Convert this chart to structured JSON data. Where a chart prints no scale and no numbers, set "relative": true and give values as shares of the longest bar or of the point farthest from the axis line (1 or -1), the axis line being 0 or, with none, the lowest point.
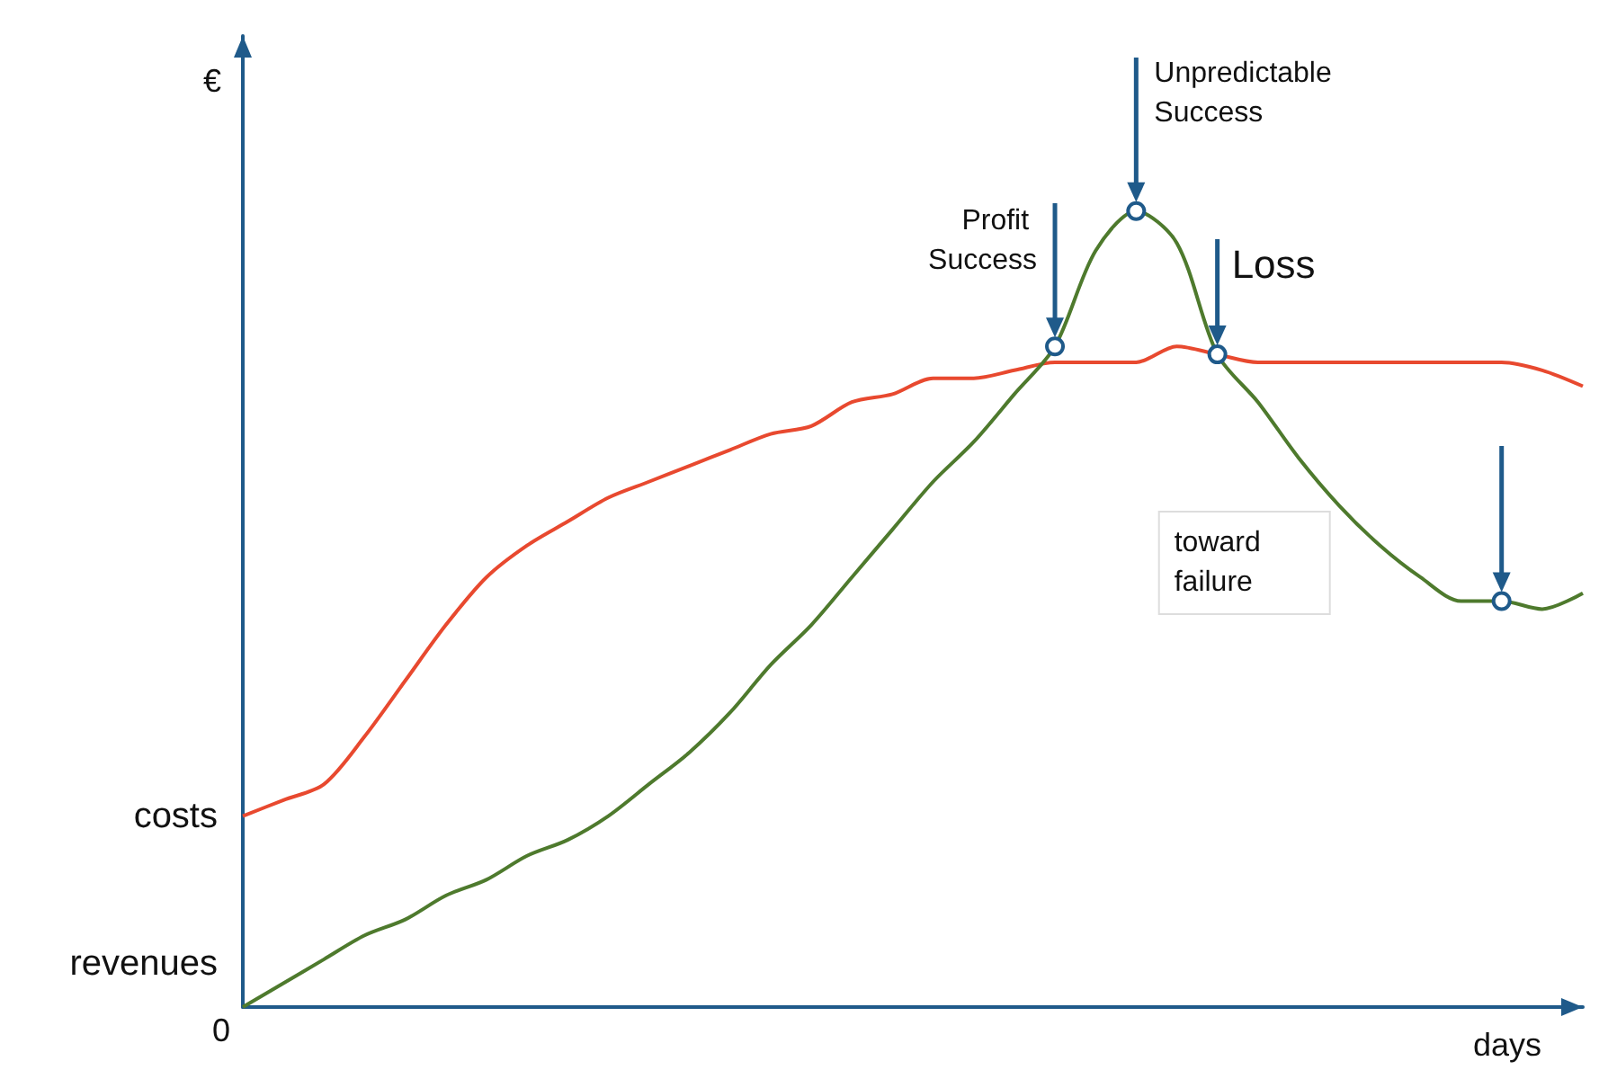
{
  "chart_data": {
    "type": "line",
    "relative": true,
    "xlabel": "days",
    "ylabel": "€",
    "legend": false,
    "grid": false,
    "marker": "none",
    "categories": [
      null,
      null,
      null,
      null,
      null,
      null,
      null,
      null,
      null,
      null,
      null,
      null,
      null,
      null,
      null,
      null,
      null,
      null,
      null,
      null,
      null,
      null,
      null,
      null,
      null,
      null,
      null,
      null,
      null,
      null,
      null,
      null,
      null,
      null
    ],
    "series": [
      {
        "name": "costs",
        "color": "#e8492f",
        "values": [
          0.24,
          0.26,
          0.28,
          0.34,
          0.41,
          0.48,
          0.54,
          0.58,
          0.61,
          0.64,
          0.66,
          0.68,
          0.7,
          0.72,
          0.73,
          0.76,
          0.77,
          0.79,
          0.79,
          0.8,
          0.81,
          0.81,
          0.81,
          0.83,
          0.82,
          0.81,
          0.81,
          0.81,
          0.81,
          0.81,
          0.81,
          0.81,
          0.8,
          0.78
        ]
      },
      {
        "name": "revenues",
        "color": "#4e7a2d",
        "values": [
          0,
          0.03,
          0.06,
          0.09,
          0.11,
          0.14,
          0.16,
          0.19,
          0.21,
          0.24,
          0.28,
          0.32,
          0.37,
          0.43,
          0.48,
          0.54,
          0.6,
          0.66,
          0.71,
          0.77,
          0.83,
          0.95,
          1,
          0.96,
          0.82,
          0.76,
          0.69,
          0.63,
          0.58,
          0.54,
          0.51,
          0.51,
          0.5,
          0.52
        ]
      }
    ],
    "annotations": [
      "0",
      "Unpredictable Success",
      "Profit Success",
      "Loss",
      "toward failure"
    ]
  }
}
